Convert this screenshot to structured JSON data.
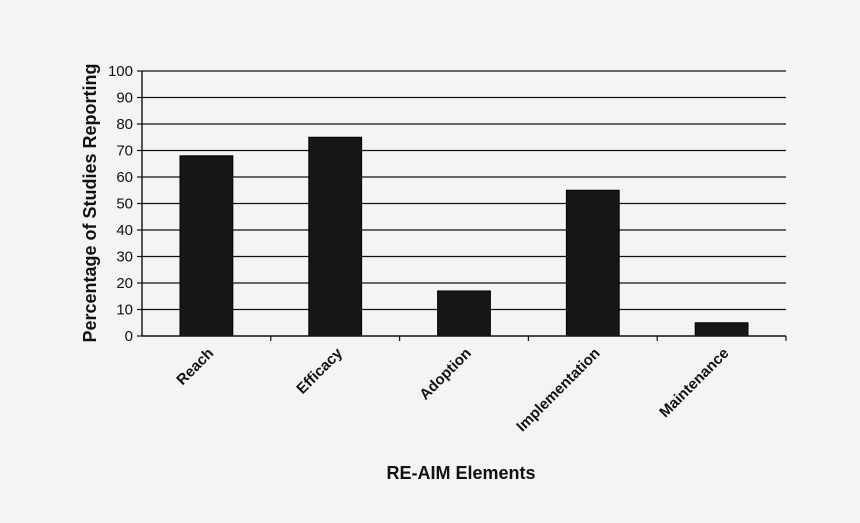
{
  "chart_data": {
    "type": "bar",
    "categories": [
      "Reach",
      "Efficacy",
      "Adoption",
      "Implementation",
      "Maintenance"
    ],
    "values": [
      68,
      75,
      17,
      55,
      5
    ],
    "xlabel": "RE-AIM Elements",
    "ylabel": "Percentage of Studies Reporting",
    "ylim": [
      0,
      100
    ],
    "yticks": [
      0,
      10,
      20,
      30,
      40,
      50,
      60,
      70,
      80,
      90,
      100
    ],
    "grid": true,
    "bar_color": "#161616"
  }
}
